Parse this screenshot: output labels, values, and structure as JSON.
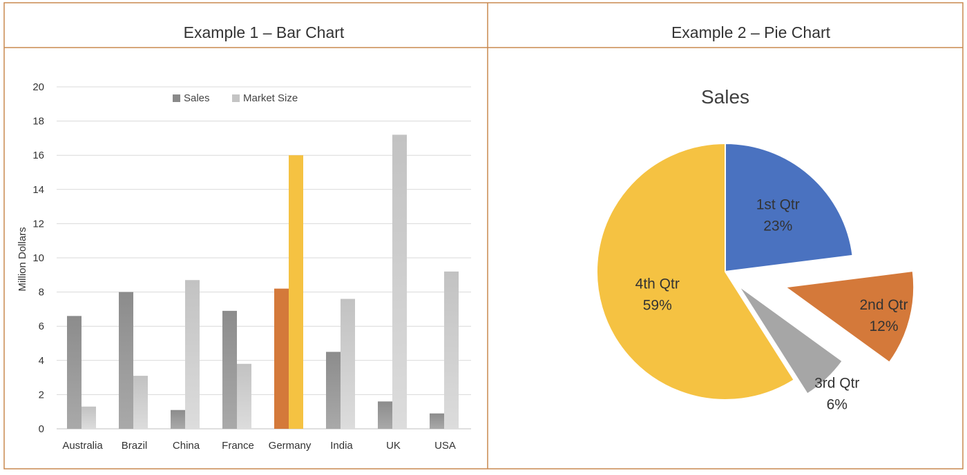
{
  "panels": {
    "left_title": "Example 1 – Bar Chart",
    "right_title": "Example 2 – Pie Chart"
  },
  "colors": {
    "border": "#c9884f",
    "sales": "#8a8a8a",
    "market": "#c4c4c4",
    "highlight_sales": "#d4793a",
    "highlight_market": "#f5c242",
    "grid": "#d9d9d9",
    "text": "#333333"
  },
  "chart_data": [
    {
      "type": "bar",
      "title": "",
      "xlabel": "",
      "ylabel": "Million Dollars",
      "ylim": [
        0,
        20
      ],
      "yticks": [
        0,
        2,
        4,
        6,
        8,
        10,
        12,
        14,
        16,
        18,
        20
      ],
      "grid": true,
      "legend_position": "top-center",
      "categories": [
        "Australia",
        "Brazil",
        "China",
        "France",
        "Germany",
        "India",
        "UK",
        "USA"
      ],
      "highlight_category": "Germany",
      "series": [
        {
          "name": "Sales",
          "values": [
            6.6,
            8.0,
            1.1,
            6.9,
            8.2,
            4.5,
            1.6,
            0.9
          ]
        },
        {
          "name": "Market Size",
          "values": [
            1.3,
            3.1,
            8.7,
            3.8,
            16.0,
            7.6,
            17.2,
            9.2
          ]
        }
      ]
    },
    {
      "type": "pie",
      "title": "Sales",
      "legend_position": "none",
      "slices": [
        {
          "label": "1st Qtr",
          "percent_label": "23%",
          "value": 23,
          "color": "#4a72c0",
          "exploded": true
        },
        {
          "label": "2nd Qtr",
          "percent_label": "12%",
          "value": 12,
          "color": "#d4793a",
          "exploded": true
        },
        {
          "label": "3rd Qtr",
          "percent_label": "6%",
          "value": 6,
          "color": "#a6a6a6",
          "exploded": true
        },
        {
          "label": "4th Qtr",
          "percent_label": "59%",
          "value": 59,
          "color": "#f5c242",
          "exploded": false
        }
      ]
    }
  ]
}
